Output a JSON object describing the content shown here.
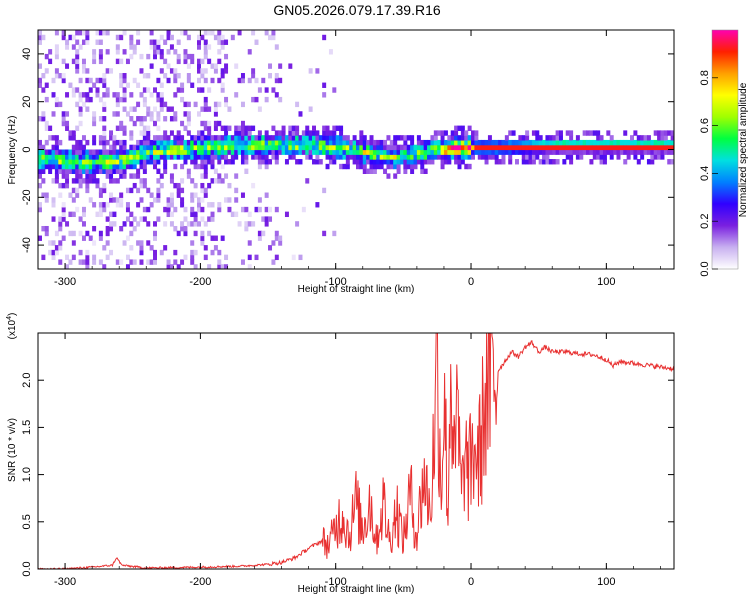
{
  "title": "GN05.2026.079.17.39.R16",
  "chart_data": [
    {
      "type": "heatmap",
      "name": "spectrogram",
      "xlabel": "Height of straight line (km)",
      "ylabel": "Frequency (Hz)",
      "xlim": [
        -320,
        150
      ],
      "ylim": [
        -50,
        50
      ],
      "xticks": [
        -300,
        -200,
        -100,
        0,
        100
      ],
      "yticks": [
        -40,
        -20,
        0,
        20,
        40
      ],
      "ridge": {
        "x": [
          -315,
          -290,
          -270,
          -255,
          -240,
          -220,
          -200,
          -170,
          -140,
          -120,
          -100,
          -80,
          -60,
          -45,
          -35,
          -25,
          -15,
          -5,
          0,
          20,
          60,
          90,
          100,
          150
        ],
        "y": [
          -4,
          -5,
          -5,
          -4,
          -1,
          0,
          1,
          2,
          2,
          2,
          1,
          -1,
          -3,
          -2,
          -1,
          0,
          0.5,
          1,
          1,
          1,
          1.5,
          1.5,
          1.5,
          1.5
        ]
      },
      "colorbar": {
        "label": "Normalized spectral amplitude",
        "range": [
          0,
          1
        ],
        "ticks": [
          0.0,
          0.2,
          0.4,
          0.6,
          0.8
        ],
        "tick_labels": [
          "0.0",
          "0.2",
          "0.4",
          "0.6",
          "0.8"
        ],
        "colors": [
          "#ffffff",
          "#c8b0f0",
          "#7a20e0",
          "#3000ff",
          "#0080ff",
          "#00e0e0",
          "#00ff40",
          "#a0ff00",
          "#ffff00",
          "#ffa000",
          "#ff2000",
          "#ff00b0"
        ]
      }
    },
    {
      "type": "line",
      "name": "snr",
      "xlabel": "Height of straight line (km)",
      "ylabel": "SNR (10 * v/v)",
      "y_multiplier": "(x10",
      "y_multiplier_exp": "4",
      "y_multiplier_close": ")",
      "xlim": [
        -320,
        150
      ],
      "ylim": [
        0,
        2.5
      ],
      "xticks": [
        -300,
        -200,
        -100,
        0,
        100
      ],
      "yticks": [
        0.0,
        0.5,
        1.0,
        1.5,
        2.0
      ],
      "ytick_labels": [
        "0.0",
        "0.5",
        "1.0",
        "1.5",
        "2.0"
      ],
      "color": "#e83030",
      "x": [
        -320,
        -300,
        -280,
        -265,
        -262,
        -258,
        -240,
        -200,
        -170,
        -150,
        -140,
        -130,
        -120,
        -110,
        -105,
        -100,
        -95,
        -90,
        -85,
        -80,
        -75,
        -70,
        -65,
        -60,
        -55,
        -50,
        -45,
        -40,
        -35,
        -30,
        -27,
        -25,
        -22,
        -20,
        -17,
        -15,
        -12,
        -10,
        -7,
        -5,
        -2,
        0,
        3,
        5,
        8,
        10,
        15,
        20,
        25,
        30,
        35,
        40,
        45,
        50,
        55,
        60,
        70,
        80,
        90,
        100,
        105,
        110,
        120,
        130,
        140,
        150
      ],
      "y": [
        0.0,
        0.0,
        0.02,
        0.04,
        0.12,
        0.04,
        0.01,
        0.02,
        0.03,
        0.05,
        0.07,
        0.12,
        0.22,
        0.3,
        0.25,
        0.45,
        0.6,
        0.35,
        0.7,
        0.4,
        0.75,
        0.3,
        0.7,
        0.3,
        0.65,
        0.3,
        0.8,
        0.35,
        1.0,
        0.6,
        1.5,
        2.3,
        0.8,
        1.9,
        0.6,
        2.2,
        1.0,
        1.7,
        0.7,
        1.2,
        1.0,
        1.1,
        1.3,
        1.1,
        1.4,
        1.8,
        1.9,
        2.1,
        2.2,
        2.3,
        2.25,
        2.35,
        2.4,
        2.3,
        2.35,
        2.3,
        2.3,
        2.28,
        2.27,
        2.22,
        2.15,
        2.2,
        2.18,
        2.16,
        2.14,
        2.12
      ]
    }
  ]
}
